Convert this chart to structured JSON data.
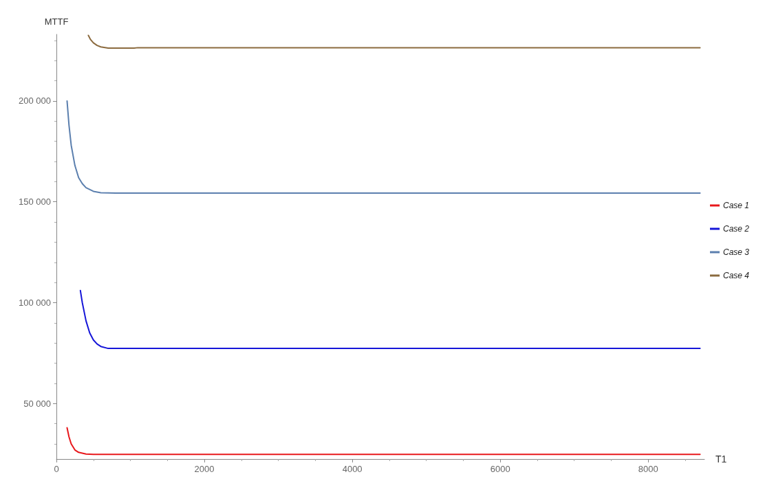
{
  "chart_data": {
    "type": "line",
    "xlabel": "T1",
    "ylabel": "MTTF",
    "xlim": [
      0,
      8760
    ],
    "xticks": [
      0,
      2000,
      4000,
      6000,
      8000
    ],
    "ylim": [
      22500,
      233000
    ],
    "yticks": [
      {
        "value": 50000,
        "label": "50 000"
      },
      {
        "value": 100000,
        "label": "100 000"
      },
      {
        "value": 150000,
        "label": "150 000"
      },
      {
        "value": 200000,
        "label": "200 000"
      }
    ],
    "grid": false,
    "legend": "right",
    "marker": "none",
    "line_style": "solid",
    "series": [
      {
        "name": "Case 1",
        "color": "#e8171b",
        "x": [
          144,
          170,
          200,
          250,
          300,
          400,
          500,
          8700
        ],
        "values": [
          38000,
          33500,
          30000,
          27000,
          25800,
          25000,
          24800,
          24800
        ]
      },
      {
        "name": "Case 2",
        "color": "#1515d8",
        "x": [
          324,
          350,
          400,
          450,
          500,
          550,
          600,
          700,
          8700
        ],
        "values": [
          106000,
          100000,
          91000,
          85000,
          81500,
          79500,
          78300,
          77300,
          77300
        ]
      },
      {
        "name": "Case 3",
        "color": "#5b7fae",
        "x": [
          144,
          170,
          200,
          250,
          300,
          350,
          400,
          500,
          600,
          800,
          8700
        ],
        "values": [
          200000,
          188000,
          178000,
          168000,
          162000,
          159000,
          157000,
          155200,
          154500,
          154300,
          154300
        ]
      },
      {
        "name": "Case 4",
        "color": "#8b6a3e",
        "x": [
          432,
          460,
          500,
          550,
          600,
          700,
          1050,
          1100,
          8700
        ],
        "values": [
          232500,
          230500,
          228800,
          227500,
          226800,
          226200,
          226200,
          226400,
          226400
        ]
      }
    ]
  }
}
